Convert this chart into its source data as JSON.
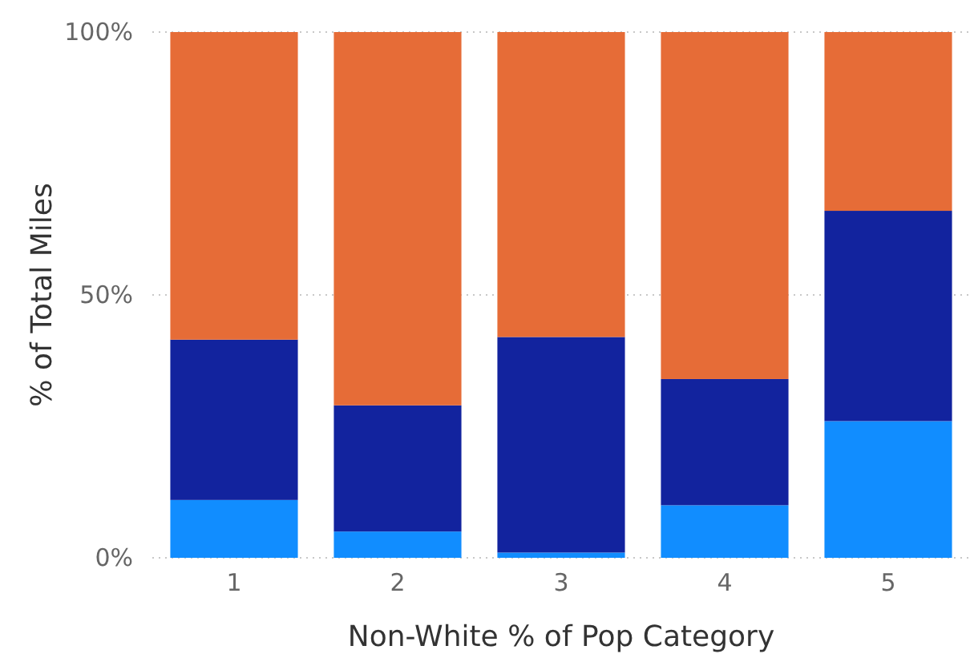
{
  "chart_data": {
    "type": "bar",
    "stacked": true,
    "xlabel": "Non-White % of Pop Category",
    "ylabel": "% of Total Miles",
    "categories": [
      "1",
      "2",
      "3",
      "4",
      "5"
    ],
    "series": [
      {
        "color": "#118dff",
        "values": [
          11,
          5,
          1,
          10,
          26
        ]
      },
      {
        "color": "#12239e",
        "values": [
          30.5,
          24,
          41,
          24,
          40
        ]
      },
      {
        "color": "#e66c37",
        "values": [
          58.5,
          71,
          58,
          66,
          34
        ]
      }
    ],
    "ylim": [
      0,
      100
    ],
    "yticks": [
      {
        "value": 0,
        "label": "0%"
      },
      {
        "value": 50,
        "label": "50%"
      },
      {
        "value": 100,
        "label": "100%"
      }
    ],
    "grid": "y"
  }
}
